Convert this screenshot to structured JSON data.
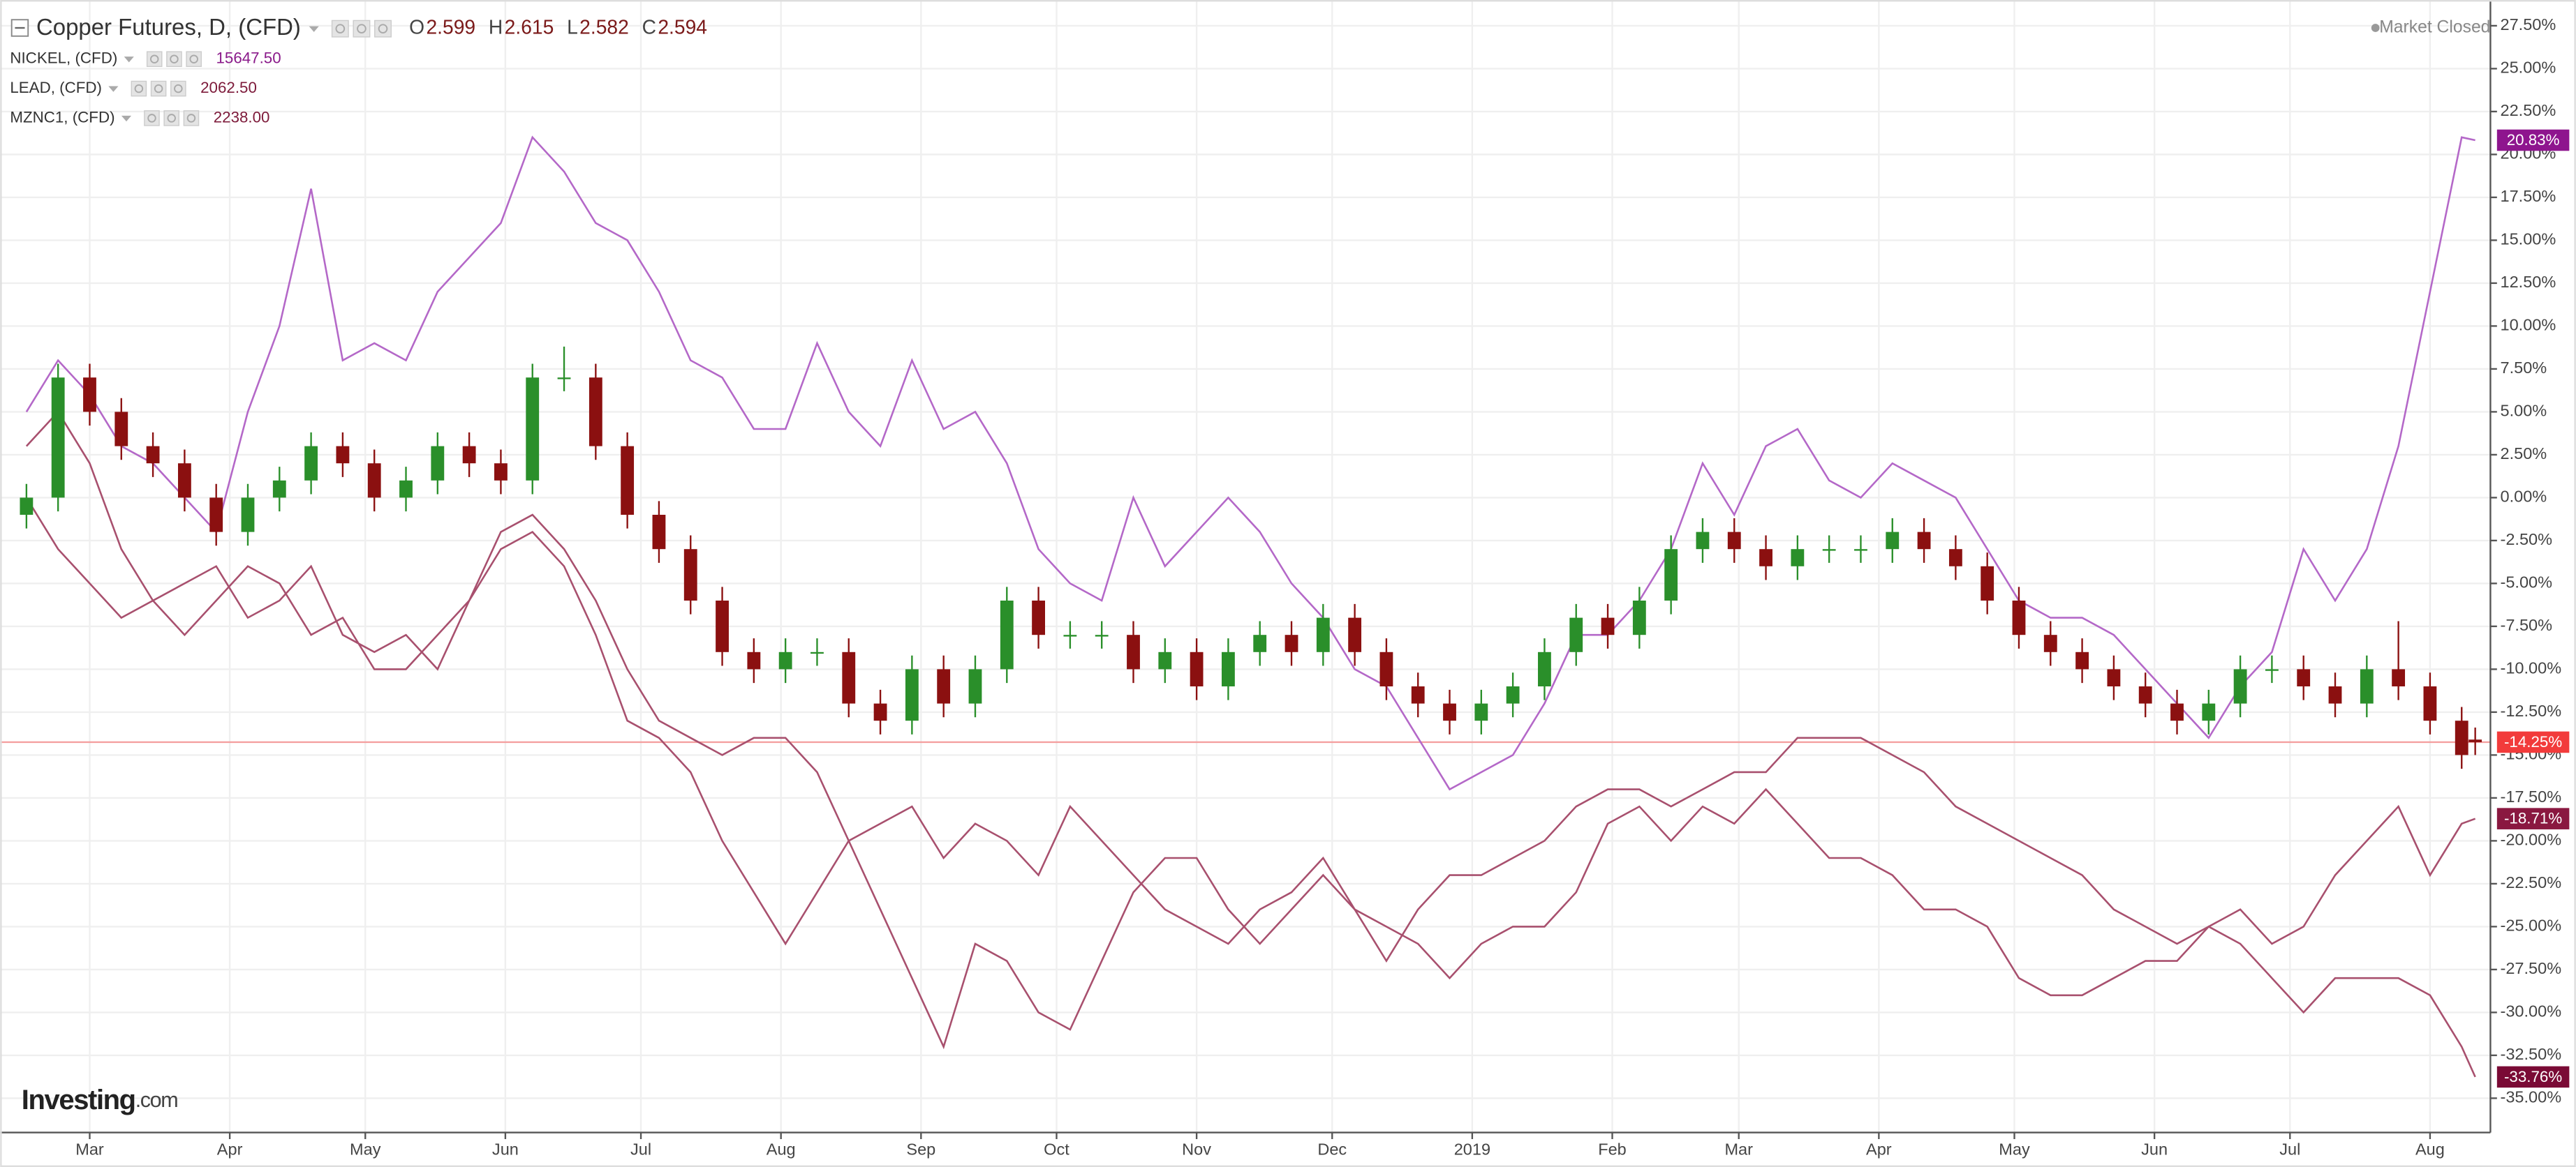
{
  "chart_data": {
    "type": "candlestick",
    "title": "Copper Futures, D, (CFD)",
    "header_ohlc": [
      {
        "label": "O",
        "value": 2.599
      },
      {
        "label": "H",
        "value": 2.615
      },
      {
        "label": "L",
        "value": 2.582
      },
      {
        "label": "C",
        "value": 2.594
      }
    ],
    "status": "Market Closed",
    "watermark": {
      "brand": "Investing",
      "suffix": ".com"
    },
    "up_color": "#2a8f2a",
    "down_color": "#8b1010",
    "badge_color": "#f23b3b",
    "price_line_color": "#f4a0a0",
    "grid": true,
    "x": [
      14,
      21,
      28,
      35,
      42,
      49,
      56,
      63,
      70,
      77,
      84,
      91,
      98,
      105,
      112,
      119,
      126,
      133,
      140,
      147,
      154,
      161,
      168,
      175,
      182,
      189,
      196,
      203,
      210,
      217,
      224,
      231,
      238,
      245,
      252,
      259,
      266,
      273,
      280,
      287,
      294,
      301,
      308,
      315,
      322,
      329,
      336,
      343,
      350,
      357,
      364,
      371,
      378,
      385,
      392,
      399,
      406,
      413,
      420,
      427,
      434,
      441,
      448,
      455,
      462,
      469,
      476,
      483,
      490,
      497,
      504,
      511,
      518,
      525,
      532,
      539,
      546,
      553,
      556
    ],
    "open": [
      -1,
      0,
      7,
      5,
      3,
      2,
      0,
      -2,
      0,
      1,
      3,
      2,
      0,
      1,
      3,
      2,
      1,
      7,
      7,
      3,
      -1,
      -3,
      -6,
      -9,
      -10,
      -9,
      -9,
      -12,
      -13,
      -10,
      -12,
      -10,
      -6,
      -8,
      -8,
      -8,
      -10,
      -9,
      -11,
      -9,
      -8,
      -9,
      -7,
      -9,
      -11,
      -12,
      -13,
      -12,
      -11,
      -9,
      -7,
      -8,
      -6,
      -3,
      -2,
      -3,
      -4,
      -3,
      -3,
      -3,
      -2,
      -3,
      -4,
      -6,
      -8,
      -9,
      -10,
      -11,
      -12,
      -13,
      -12,
      -10,
      -10,
      -11,
      -12,
      -10,
      -11,
      -13,
      -14.1
    ],
    "high": [
      0.8,
      7.8,
      7.8,
      5.8,
      3.8,
      2.8,
      0.8,
      0.8,
      1.8,
      3.8,
      3.8,
      2.8,
      1.8,
      3.8,
      3.8,
      2.8,
      7.8,
      8.8,
      7.8,
      3.8,
      -0.2,
      -2.2,
      -5.2,
      -8.2,
      -8.2,
      -8.2,
      -8.2,
      -11.2,
      -9.2,
      -9.2,
      -9.2,
      -5.2,
      -5.2,
      -7.2,
      -7.2,
      -7.2,
      -8.2,
      -8.2,
      -8.2,
      -7.2,
      -7.2,
      -6.2,
      -6.2,
      -8.2,
      -10.2,
      -11.2,
      -11.2,
      -10.2,
      -8.2,
      -6.2,
      -6.2,
      -5.2,
      -2.2,
      -1.2,
      -1.2,
      -2.2,
      -2.2,
      -2.2,
      -2.2,
      -1.2,
      -1.2,
      -2.2,
      -3.2,
      -5.2,
      -7.2,
      -8.2,
      -9.2,
      -10.2,
      -11.2,
      -11.2,
      -9.2,
      -9.2,
      -9.2,
      -10.2,
      -9.2,
      -7.2,
      -10.2,
      -12.2,
      -13.4
    ],
    "low": [
      -1.8,
      -0.8,
      4.2,
      2.2,
      1.2,
      -0.8,
      -2.8,
      -2.8,
      -0.8,
      0.2,
      1.2,
      -0.8,
      -0.8,
      0.2,
      1.2,
      0.2,
      0.2,
      6.2,
      2.2,
      -1.8,
      -3.8,
      -6.8,
      -9.8,
      -10.8,
      -10.8,
      -9.8,
      -12.8,
      -13.8,
      -13.8,
      -12.8,
      -12.8,
      -10.8,
      -8.8,
      -8.8,
      -8.8,
      -10.8,
      -10.8,
      -11.8,
      -11.8,
      -9.8,
      -9.8,
      -9.8,
      -9.8,
      -11.8,
      -12.8,
      -13.8,
      -13.8,
      -12.8,
      -11.8,
      -9.8,
      -8.8,
      -8.8,
      -6.8,
      -3.8,
      -3.8,
      -4.8,
      -4.8,
      -3.8,
      -3.8,
      -3.8,
      -3.8,
      -4.8,
      -6.8,
      -8.8,
      -9.8,
      -10.8,
      -11.8,
      -12.8,
      -13.8,
      -13.8,
      -12.8,
      -10.8,
      -11.8,
      -12.8,
      -12.8,
      -11.8,
      -13.8,
      -15.8,
      -15.0
    ],
    "close": [
      0,
      7,
      5,
      3,
      2,
      0,
      -2,
      0,
      1,
      3,
      2,
      0,
      1,
      3,
      2,
      1,
      7,
      7,
      3,
      -1,
      -3,
      -6,
      -9,
      -10,
      -9,
      -9,
      -12,
      -13,
      -10,
      -12,
      -10,
      -6,
      -8,
      -8,
      -8,
      -10,
      -9,
      -11,
      -9,
      -8,
      -9,
      -7,
      -9,
      -11,
      -12,
      -13,
      -12,
      -11,
      -9,
      -7,
      -8,
      -6,
      -3,
      -2,
      -3,
      -4,
      -3,
      -3,
      -3,
      -2,
      -3,
      -4,
      -6,
      -8,
      -9,
      -10,
      -11,
      -12,
      -13,
      -12,
      -10,
      -10,
      -11,
      -12,
      -10,
      -11,
      -13,
      -15,
      -14.25
    ],
    "value_labels": [
      null,
      null,
      null,
      null,
      null,
      null,
      null,
      null,
      null,
      null,
      null,
      null,
      null,
      null,
      null,
      null,
      null,
      null,
      null,
      null,
      null,
      null,
      null,
      null,
      null,
      null,
      null,
      null,
      null,
      null,
      null,
      null,
      null,
      null,
      null,
      null,
      null,
      null,
      null,
      null,
      null,
      null,
      null,
      null,
      null,
      null,
      null,
      null,
      null,
      null,
      null,
      null,
      null,
      null,
      null,
      null,
      null,
      null,
      null,
      null,
      null,
      null,
      null,
      null,
      null,
      null,
      null,
      null,
      null,
      null,
      null,
      null,
      null,
      null,
      null,
      null,
      null,
      null,
      "-14.25%"
    ],
    "series": [
      {
        "name": "NICKEL, (CFD)",
        "color": "#b468c8",
        "badge_color": "#8e158e",
        "last_color": "#8a1a8a",
        "last": {
          "value": 15647.5,
          "label": "15647.50"
        },
        "values": [
          5,
          8,
          6,
          3,
          2,
          0,
          -2,
          5,
          10,
          18,
          8,
          9,
          8,
          12,
          14,
          16,
          21,
          19,
          16,
          15,
          12,
          8,
          7,
          4,
          4,
          9,
          5,
          3,
          8,
          4,
          5,
          2,
          -3,
          -5,
          -6,
          0,
          -4,
          -2,
          0,
          -2,
          -5,
          -7,
          -10,
          -11,
          -14,
          -17,
          -16,
          -15,
          -12,
          -8,
          -8,
          -6,
          -3,
          2,
          -1,
          3,
          4,
          1,
          0,
          2,
          1,
          0,
          -3,
          -6,
          -7,
          -7,
          -8,
          -10,
          -12,
          -14,
          -11,
          -9,
          -3,
          -6,
          -3,
          3,
          12,
          21,
          20.83
        ],
        "value_labels": [
          null,
          null,
          null,
          null,
          null,
          null,
          null,
          null,
          null,
          null,
          null,
          null,
          null,
          null,
          null,
          null,
          null,
          null,
          null,
          null,
          null,
          null,
          null,
          null,
          null,
          null,
          null,
          null,
          null,
          null,
          null,
          null,
          null,
          null,
          null,
          null,
          null,
          null,
          null,
          null,
          null,
          null,
          null,
          null,
          null,
          null,
          null,
          null,
          null,
          null,
          null,
          null,
          null,
          null,
          null,
          null,
          null,
          null,
          null,
          null,
          null,
          null,
          null,
          null,
          null,
          null,
          null,
          null,
          null,
          null,
          null,
          null,
          null,
          null,
          null,
          null,
          null,
          null,
          "20.83%"
        ]
      },
      {
        "name": "LEAD, (CFD)",
        "color": "#a8506e",
        "badge_color": "#8a1840",
        "last_color": "#7d1a3a",
        "last": {
          "value": 2062.5,
          "label": "2062.50"
        },
        "values": [
          0,
          -3,
          -5,
          -7,
          -6,
          -8,
          -6,
          -4,
          -5,
          -8,
          -7,
          -10,
          -10,
          -8,
          -6,
          -3,
          -2,
          -4,
          -8,
          -13,
          -14,
          -16,
          -20,
          -23,
          -26,
          -23,
          -20,
          -19,
          -18,
          -21,
          -19,
          -20,
          -22,
          -18,
          -20,
          -22,
          -24,
          -25,
          -26,
          -24,
          -23,
          -21,
          -24,
          -27,
          -24,
          -22,
          -22,
          -21,
          -20,
          -18,
          -17,
          -17,
          -18,
          -17,
          -16,
          -16,
          -14,
          -14,
          -14,
          -15,
          -16,
          -18,
          -19,
          -20,
          -21,
          -22,
          -24,
          -25,
          -26,
          -25,
          -24,
          -26,
          -25,
          -22,
          -20,
          -18,
          -22,
          -19,
          -18.71
        ],
        "value_labels": [
          null,
          null,
          null,
          null,
          null,
          null,
          null,
          null,
          null,
          null,
          null,
          null,
          null,
          null,
          null,
          null,
          null,
          null,
          null,
          null,
          null,
          null,
          null,
          null,
          null,
          null,
          null,
          null,
          null,
          null,
          null,
          null,
          null,
          null,
          null,
          null,
          null,
          null,
          null,
          null,
          null,
          null,
          null,
          null,
          null,
          null,
          null,
          null,
          null,
          null,
          null,
          null,
          null,
          null,
          null,
          null,
          null,
          null,
          null,
          null,
          null,
          null,
          null,
          null,
          null,
          null,
          null,
          null,
          null,
          null,
          null,
          null,
          null,
          null,
          null,
          null,
          null,
          null,
          "-18.71%"
        ]
      },
      {
        "name": "MZNC1, (CFD)",
        "color": "#a8506e",
        "badge_color": "#7a0a35",
        "last_color": "#7d1a3a",
        "last": {
          "value": 2238,
          "label": "2238.00"
        },
        "values": [
          3,
          5,
          2,
          -3,
          -6,
          -5,
          -4,
          -7,
          -6,
          -4,
          -8,
          -9,
          -8,
          -10,
          -6,
          -2,
          -1,
          -3,
          -6,
          -10,
          -13,
          -14,
          -15,
          -14,
          -14,
          -16,
          -20,
          -24,
          -28,
          -32,
          -26,
          -27,
          -30,
          -31,
          -27,
          -23,
          -21,
          -21,
          -24,
          -26,
          -24,
          -22,
          -24,
          -25,
          -26,
          -28,
          -26,
          -25,
          -25,
          -23,
          -19,
          -18,
          -20,
          -18,
          -19,
          -17,
          -19,
          -21,
          -21,
          -22,
          -24,
          -24,
          -25,
          -28,
          -29,
          -29,
          -28,
          -27,
          -27,
          -25,
          -26,
          -28,
          -30,
          -28,
          -28,
          -28,
          -29,
          -32,
          -33.76
        ],
        "value_labels": [
          null,
          null,
          null,
          null,
          null,
          null,
          null,
          null,
          null,
          null,
          null,
          null,
          null,
          null,
          null,
          null,
          null,
          null,
          null,
          null,
          null,
          null,
          null,
          null,
          null,
          null,
          null,
          null,
          null,
          null,
          null,
          null,
          null,
          null,
          null,
          null,
          null,
          null,
          null,
          null,
          null,
          null,
          null,
          null,
          null,
          null,
          null,
          null,
          null,
          null,
          null,
          null,
          null,
          null,
          null,
          null,
          null,
          null,
          null,
          null,
          null,
          null,
          null,
          null,
          null,
          null,
          null,
          null,
          null,
          null,
          null,
          null,
          null,
          null,
          null,
          null,
          null,
          null,
          "-33.76%"
        ]
      }
    ],
    "xlim": [
      10,
      559
    ],
    "xticks": [
      {
        "value": 28,
        "label": "Mar"
      },
      {
        "value": 59,
        "label": "Apr"
      },
      {
        "value": 89,
        "label": "May"
      },
      {
        "value": 120,
        "label": "Jun"
      },
      {
        "value": 150,
        "label": "Jul"
      },
      {
        "value": 181,
        "label": "Aug"
      },
      {
        "value": 212,
        "label": "Sep"
      },
      {
        "value": 242,
        "label": "Oct"
      },
      {
        "value": 273,
        "label": "Nov"
      },
      {
        "value": 303,
        "label": "Dec"
      },
      {
        "value": 334,
        "label": "2019"
      },
      {
        "value": 365,
        "label": "Feb"
      },
      {
        "value": 393,
        "label": "Mar"
      },
      {
        "value": 424,
        "label": "Apr"
      },
      {
        "value": 454,
        "label": "May"
      },
      {
        "value": 485,
        "label": "Jun"
      },
      {
        "value": 515,
        "label": "Jul"
      },
      {
        "value": 546,
        "label": "Aug"
      }
    ],
    "ylim": [
      -37,
      29
    ],
    "yticks": [
      {
        "value": -35,
        "label": "-35.00%"
      },
      {
        "value": -32.5,
        "label": "-32.50%"
      },
      {
        "value": -30,
        "label": "-30.00%"
      },
      {
        "value": -27.5,
        "label": "-27.50%"
      },
      {
        "value": -25,
        "label": "-25.00%"
      },
      {
        "value": -22.5,
        "label": "-22.50%"
      },
      {
        "value": -20,
        "label": "-20.00%"
      },
      {
        "value": -17.5,
        "label": "-17.50%"
      },
      {
        "value": -15,
        "label": "-15.00%"
      },
      {
        "value": -12.5,
        "label": "-12.50%"
      },
      {
        "value": -10,
        "label": "-10.00%"
      },
      {
        "value": -7.5,
        "label": "-7.50%"
      },
      {
        "value": -5,
        "label": "-5.00%"
      },
      {
        "value": -2.5,
        "label": "-2.50%"
      },
      {
        "value": 0,
        "label": "0.00%"
      },
      {
        "value": 2.5,
        "label": "2.50%"
      },
      {
        "value": 5,
        "label": "5.00%"
      },
      {
        "value": 7.5,
        "label": "7.50%"
      },
      {
        "value": 10,
        "label": "10.00%"
      },
      {
        "value": 12.5,
        "label": "12.50%"
      },
      {
        "value": 15,
        "label": "15.00%"
      },
      {
        "value": 17.5,
        "label": "17.50%"
      },
      {
        "value": 20,
        "label": "20.00%"
      },
      {
        "value": 22.5,
        "label": "22.50%"
      },
      {
        "value": 25,
        "label": "25.00%"
      },
      {
        "value": 27.5,
        "label": "27.50%"
      }
    ]
  }
}
